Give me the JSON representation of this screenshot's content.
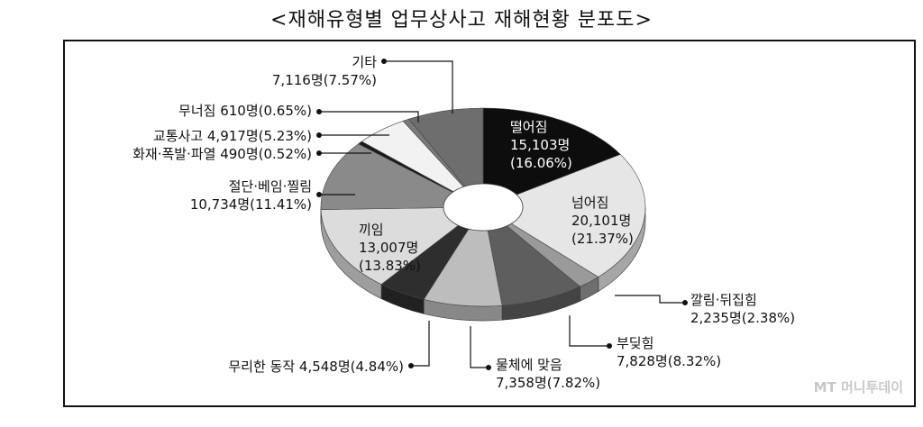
{
  "title": "<재해유형별 업무상사고 재해현황 분포도>",
  "watermark": "MT 머니투데이",
  "chart_data": {
    "type": "pie",
    "donut": true,
    "title": "<재해유형별 업무상사고 재해현황 분포도>",
    "unit": "명",
    "slices": [
      {
        "name": "떨어짐",
        "value": 15103,
        "percent": 16.06,
        "label_lines": [
          "떨어짐",
          "15,103명",
          "(16.06%)"
        ],
        "color": "#0d0d0d",
        "label_color": "#ffffff"
      },
      {
        "name": "넘어짐",
        "value": 20101,
        "percent": 21.37,
        "label_lines": [
          "넘어짐",
          "20,101명",
          "(21.37%)"
        ],
        "color": "#e6e6e6",
        "label_color": "#111111"
      },
      {
        "name": "깔림·뒤집힘",
        "value": 2235,
        "percent": 2.38,
        "label_lines": [
          "깔림·뒤집힘",
          "2,235명(2.38%)"
        ],
        "color": "#9a9a9a",
        "label_color": "#111111"
      },
      {
        "name": "부딪힘",
        "value": 7828,
        "percent": 8.32,
        "label_lines": [
          "부딪힘",
          "7,828명(8.32%)"
        ],
        "color": "#5e5e5e",
        "label_color": "#111111"
      },
      {
        "name": "물체에 맞음",
        "value": 7358,
        "percent": 7.82,
        "label_lines": [
          "물체에 맞음",
          "7,358명(7.82%)"
        ],
        "color": "#bdbdbd",
        "label_color": "#111111"
      },
      {
        "name": "무리한 동작",
        "value": 4548,
        "percent": 4.84,
        "label_lines": [
          "무리한 동작 4,548명(4.84%)"
        ],
        "color": "#2e2e2e",
        "label_color": "#111111"
      },
      {
        "name": "끼임",
        "value": 13007,
        "percent": 13.83,
        "label_lines": [
          "끼임",
          "13,007명",
          "(13.83%)"
        ],
        "color": "#dcdcdc",
        "label_color": "#111111"
      },
      {
        "name": "절단·베임·찔림",
        "value": 10734,
        "percent": 11.41,
        "label_lines": [
          "절단·베임·찔림",
          "10,734명(11.41%)"
        ],
        "color": "#8a8a8a",
        "label_color": "#111111"
      },
      {
        "name": "화재·폭발·파열",
        "value": 490,
        "percent": 0.52,
        "label_lines": [
          "화재·폭발·파열 490명(0.52%)"
        ],
        "color": "#1a1a1a",
        "label_color": "#111111"
      },
      {
        "name": "교통사고",
        "value": 4917,
        "percent": 5.23,
        "label_lines": [
          "교통사고 4,917명(5.23%)"
        ],
        "color": "#f2f2f2",
        "label_color": "#111111"
      },
      {
        "name": "무너짐",
        "value": 610,
        "percent": 0.65,
        "label_lines": [
          "무너짐 610명(0.65%)"
        ],
        "color": "#7a7a7a",
        "label_color": "#111111"
      },
      {
        "name": "기타",
        "value": 7116,
        "percent": 7.57,
        "label_lines": [
          "기타",
          "7,116명(7.57%)"
        ],
        "color": "#6e6e6e",
        "label_color": "#111111"
      }
    ]
  }
}
